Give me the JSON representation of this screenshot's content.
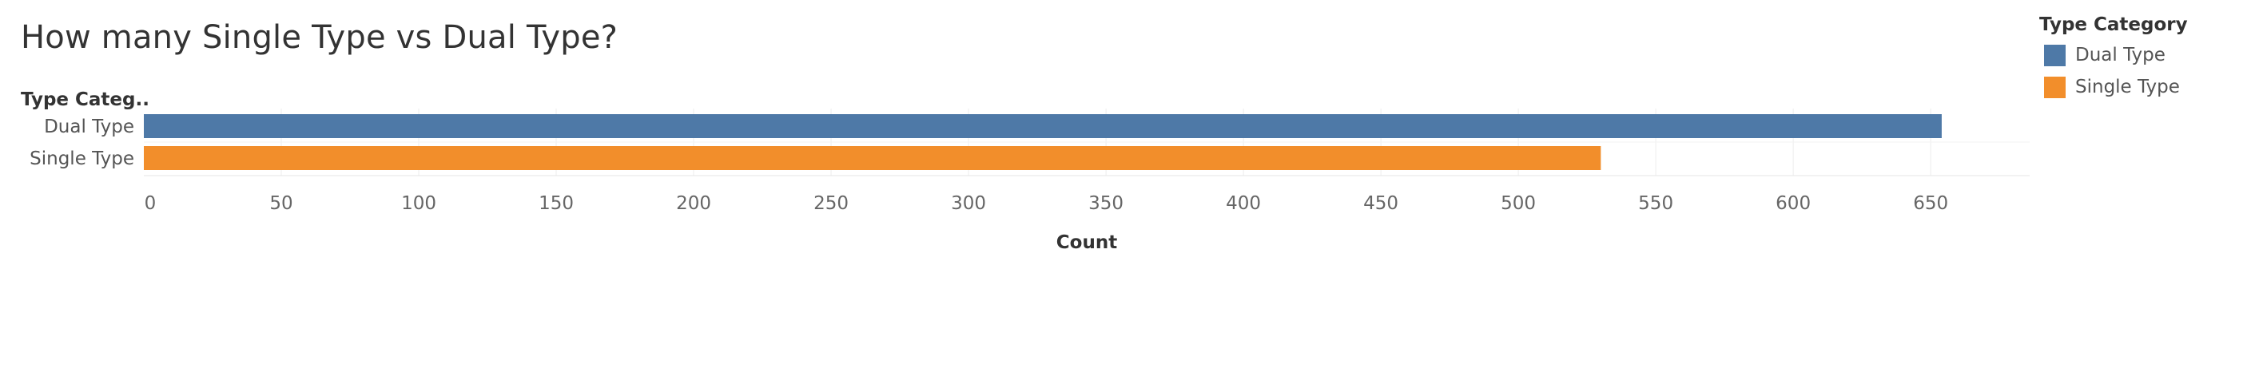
{
  "chart_data": {
    "type": "bar",
    "orientation": "horizontal",
    "title": "How many Single Type vs Dual Type?",
    "row_header": "Type Categ..",
    "xlabel": "Count",
    "ylabel": "",
    "categories": [
      "Dual Type",
      "Single Type"
    ],
    "values": [
      654,
      530
    ],
    "colors": [
      "#4e79a7",
      "#f28e2b"
    ],
    "xlim": [
      0,
      686
    ],
    "xticks": [
      0,
      50,
      100,
      150,
      200,
      250,
      300,
      350,
      400,
      450,
      500,
      550,
      600,
      650
    ],
    "grid": true,
    "legend": {
      "title": "Type Category",
      "placement": "top-right",
      "items": [
        {
          "label": "Dual Type",
          "color": "#4e79a7"
        },
        {
          "label": "Single Type",
          "color": "#f28e2b"
        }
      ]
    }
  }
}
